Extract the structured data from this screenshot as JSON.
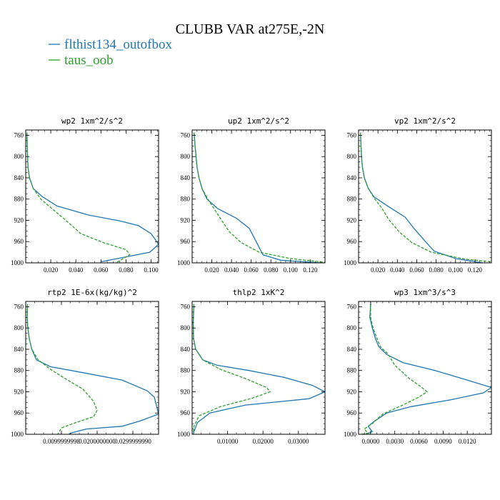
{
  "figure": {
    "title": "CLUBB VAR at275E,-2N",
    "legend": [
      {
        "label": "flthist134_outofbox",
        "color": "#1f77b4",
        "dash": "solid"
      },
      {
        "label": "taus_oob",
        "color": "#2ca02c",
        "dash": "dashed"
      }
    ]
  },
  "chart_data": [
    {
      "type": "line",
      "title": "wp2  1xm^2/s^2",
      "xlim": [
        0.0,
        0.106
      ],
      "ylim": [
        1000,
        750
      ],
      "yticks": [
        760,
        800,
        840,
        880,
        920,
        960,
        1000
      ],
      "xticks": [
        0.02,
        0.04,
        0.06,
        0.08,
        0.1
      ],
      "xtick_labels": [
        "0.020",
        "0.040",
        "0.060",
        "0.080",
        "0.100"
      ],
      "series": [
        {
          "name": "flthist134_outofbox",
          "color": "#1f77b4",
          "dash": "solid",
          "points": [
            [
              0.001,
              755
            ],
            [
              0.0012,
              780
            ],
            [
              0.0015,
              800
            ],
            [
              0.0018,
              820
            ],
            [
              0.003,
              840
            ],
            [
              0.006,
              860
            ],
            [
              0.013,
              875
            ],
            [
              0.025,
              893
            ],
            [
              0.05,
              910
            ],
            [
              0.075,
              921
            ],
            [
              0.09,
              930
            ],
            [
              0.1,
              945
            ],
            [
              0.106,
              965
            ],
            [
              0.099,
              980
            ],
            [
              0.06,
              998
            ]
          ]
        },
        {
          "name": "taus_oob",
          "color": "#2ca02c",
          "dash": "dashed",
          "points": [
            [
              0.001,
              755
            ],
            [
              0.0012,
              780
            ],
            [
              0.0015,
              800
            ],
            [
              0.0018,
              820
            ],
            [
              0.003,
              840
            ],
            [
              0.006,
              860
            ],
            [
              0.012,
              880
            ],
            [
              0.022,
              900
            ],
            [
              0.032,
              920
            ],
            [
              0.044,
              945
            ],
            [
              0.062,
              962
            ],
            [
              0.08,
              975
            ],
            [
              0.083,
              985
            ],
            [
              0.072,
              1000
            ]
          ]
        }
      ]
    },
    {
      "type": "line",
      "title": "up2  1xm^2/s^2",
      "xlim": [
        0.0,
        0.135
      ],
      "ylim": [
        1000,
        750
      ],
      "yticks": [
        760,
        800,
        840,
        880,
        920,
        960,
        1000
      ],
      "xticks": [
        0.02,
        0.04,
        0.06,
        0.08,
        0.1,
        0.12
      ],
      "xtick_labels": [
        "0.020",
        "0.040",
        "0.060",
        "0.080",
        "0.100",
        "0.120"
      ],
      "series": [
        {
          "name": "flthist134_outofbox",
          "color": "#1f77b4",
          "dash": "solid",
          "points": [
            [
              0.002,
              755
            ],
            [
              0.003,
              780
            ],
            [
              0.004,
              800
            ],
            [
              0.005,
              820
            ],
            [
              0.007,
              840
            ],
            [
              0.01,
              860
            ],
            [
              0.015,
              880
            ],
            [
              0.026,
              898
            ],
            [
              0.045,
              916
            ],
            [
              0.058,
              935
            ],
            [
              0.065,
              960
            ],
            [
              0.072,
              985
            ],
            [
              0.09,
              995
            ],
            [
              0.13,
              1000
            ]
          ]
        },
        {
          "name": "taus_oob",
          "color": "#2ca02c",
          "dash": "dashed",
          "points": [
            [
              0.002,
              755
            ],
            [
              0.003,
              780
            ],
            [
              0.004,
              800
            ],
            [
              0.005,
              820
            ],
            [
              0.007,
              840
            ],
            [
              0.01,
              860
            ],
            [
              0.016,
              880
            ],
            [
              0.023,
              900
            ],
            [
              0.03,
              920
            ],
            [
              0.038,
              942
            ],
            [
              0.05,
              962
            ],
            [
              0.068,
              980
            ],
            [
              0.1,
              992
            ],
            [
              0.135,
              999
            ]
          ]
        }
      ]
    },
    {
      "type": "line",
      "title": "vp2  1xm^2/s^2",
      "xlim": [
        0.0,
        0.137
      ],
      "ylim": [
        1000,
        750
      ],
      "yticks": [
        760,
        800,
        840,
        880,
        920,
        960,
        1000
      ],
      "xticks": [
        0.02,
        0.04,
        0.06,
        0.08,
        0.1,
        0.12
      ],
      "xtick_labels": [
        "0.020",
        "0.040",
        "0.060",
        "0.080",
        "0.100",
        "0.120"
      ],
      "series": [
        {
          "name": "flthist134_outofbox",
          "color": "#1f77b4",
          "dash": "solid",
          "points": [
            [
              0.002,
              755
            ],
            [
              0.0025,
              780
            ],
            [
              0.003,
              800
            ],
            [
              0.004,
              820
            ],
            [
              0.006,
              840
            ],
            [
              0.01,
              860
            ],
            [
              0.016,
              876
            ],
            [
              0.03,
              893
            ],
            [
              0.048,
              914
            ],
            [
              0.057,
              935
            ],
            [
              0.068,
              958
            ],
            [
              0.078,
              978
            ],
            [
              0.1,
              992
            ],
            [
              0.128,
              1000
            ]
          ]
        },
        {
          "name": "taus_oob",
          "color": "#2ca02c",
          "dash": "dashed",
          "points": [
            [
              0.002,
              755
            ],
            [
              0.0025,
              780
            ],
            [
              0.003,
              800
            ],
            [
              0.004,
              820
            ],
            [
              0.006,
              840
            ],
            [
              0.01,
              860
            ],
            [
              0.016,
              878
            ],
            [
              0.024,
              897
            ],
            [
              0.031,
              918
            ],
            [
              0.042,
              942
            ],
            [
              0.055,
              962
            ],
            [
              0.075,
              980
            ],
            [
              0.11,
              993
            ],
            [
              0.137,
              998
            ]
          ]
        }
      ]
    },
    {
      "type": "line",
      "title": "rtp2  1E-6x(kg/kg)^2",
      "xlim": [
        0.0,
        0.0372
      ],
      "ylim": [
        1000,
        750
      ],
      "yticks": [
        760,
        800,
        840,
        880,
        920,
        960,
        1000
      ],
      "xticks": [
        0.01,
        0.02,
        0.03
      ],
      "xtick_labels": [
        "0.0099999998",
        "0.0200000000",
        "0.0299999990"
      ],
      "series": [
        {
          "name": "flthist134_outofbox",
          "color": "#1f77b4",
          "dash": "solid",
          "points": [
            [
              0.0005,
              755
            ],
            [
              0.0004,
              780
            ],
            [
              0.0006,
              800
            ],
            [
              0.001,
              820
            ],
            [
              0.0017,
              840
            ],
            [
              0.003,
              860
            ],
            [
              0.007,
              873
            ],
            [
              0.016,
              884
            ],
            [
              0.027,
              898
            ],
            [
              0.034,
              918
            ],
            [
              0.036,
              930
            ],
            [
              0.0372,
              962
            ],
            [
              0.032,
              975
            ],
            [
              0.027,
              985
            ],
            [
              0.017,
              990
            ],
            [
              0.013,
              997
            ],
            [
              0.012,
              1000
            ]
          ]
        },
        {
          "name": "taus_oob",
          "color": "#2ca02c",
          "dash": "dashed",
          "points": [
            [
              0.0005,
              755
            ],
            [
              0.0004,
              780
            ],
            [
              0.0006,
              800
            ],
            [
              0.001,
              820
            ],
            [
              0.0017,
              840
            ],
            [
              0.0035,
              860
            ],
            [
              0.007,
              878
            ],
            [
              0.011,
              895
            ],
            [
              0.016,
              915
            ],
            [
              0.019,
              938
            ],
            [
              0.02,
              955
            ],
            [
              0.019,
              967
            ],
            [
              0.014,
              978
            ],
            [
              0.01,
              988
            ],
            [
              0.009,
              1000
            ]
          ]
        }
      ]
    },
    {
      "type": "line",
      "title": "thlp2  1xK^2",
      "xlim": [
        0.0,
        0.0375
      ],
      "ylim": [
        1000,
        750
      ],
      "yticks": [
        760,
        800,
        840,
        880,
        920,
        960,
        1000
      ],
      "xticks": [
        0.01,
        0.02,
        0.03
      ],
      "xtick_labels": [
        "0.01000",
        "0.02000",
        "0.03000"
      ],
      "series": [
        {
          "name": "flthist134_outofbox",
          "color": "#1f77b4",
          "dash": "solid",
          "points": [
            [
              0.0005,
              755
            ],
            [
              0.0003,
              790
            ],
            [
              0.0004,
              820
            ],
            [
              0.001,
              840
            ],
            [
              0.003,
              860
            ],
            [
              0.007,
              870
            ],
            [
              0.016,
              880
            ],
            [
              0.026,
              893
            ],
            [
              0.034,
              908
            ],
            [
              0.0375,
              920
            ],
            [
              0.033,
              933
            ],
            [
              0.015,
              945
            ],
            [
              0.005,
              960
            ],
            [
              0.0015,
              978
            ],
            [
              0.0005,
              995
            ],
            [
              0.0004,
              1000
            ]
          ]
        },
        {
          "name": "taus_oob",
          "color": "#2ca02c",
          "dash": "dashed",
          "points": [
            [
              0.0005,
              755
            ],
            [
              0.0003,
              790
            ],
            [
              0.0004,
              820
            ],
            [
              0.001,
              840
            ],
            [
              0.003,
              860
            ],
            [
              0.008,
              878
            ],
            [
              0.015,
              895
            ],
            [
              0.021,
              912
            ],
            [
              0.022,
              920
            ],
            [
              0.017,
              932
            ],
            [
              0.008,
              948
            ],
            [
              0.002,
              965
            ],
            [
              0.0005,
              985
            ],
            [
              0.0003,
              1000
            ]
          ]
        }
      ]
    },
    {
      "type": "line",
      "title": "wp3  1xm^3/s^3",
      "xlim": [
        -0.0015,
        0.015
      ],
      "ylim": [
        1000,
        750
      ],
      "yticks": [
        760,
        800,
        840,
        880,
        920,
        960,
        1000
      ],
      "xticks": [
        0.0,
        0.003,
        0.006,
        0.009,
        0.012
      ],
      "xtick_labels": [
        "0.0000",
        "0.0030",
        "0.0060",
        "0.0090",
        "0.0120"
      ],
      "series": [
        {
          "name": "flthist134_outofbox",
          "color": "#1f77b4",
          "dash": "solid",
          "points": [
            [
              0.0,
              755
            ],
            [
              -0.0001,
              780
            ],
            [
              0.0002,
              800
            ],
            [
              0.0006,
              820
            ],
            [
              0.001,
              835
            ],
            [
              0.002,
              850
            ],
            [
              0.004,
              865
            ],
            [
              0.008,
              880
            ],
            [
              0.012,
              898
            ],
            [
              0.015,
              912
            ],
            [
              0.014,
              922
            ],
            [
              0.01,
              935
            ],
            [
              0.005,
              948
            ],
            [
              0.002,
              960
            ],
            [
              0.0005,
              975
            ],
            [
              -0.0003,
              985
            ],
            [
              0.0002,
              995
            ],
            [
              -0.0006,
              1000
            ]
          ]
        },
        {
          "name": "taus_oob",
          "color": "#2ca02c",
          "dash": "dashed",
          "points": [
            [
              0.0,
              755
            ],
            [
              0.0,
              780
            ],
            [
              0.0003,
              800
            ],
            [
              0.0008,
              820
            ],
            [
              0.0012,
              835
            ],
            [
              0.0022,
              850
            ],
            [
              0.003,
              870
            ],
            [
              0.0048,
              895
            ],
            [
              0.0062,
              910
            ],
            [
              0.007,
              920
            ],
            [
              0.006,
              930
            ],
            [
              0.004,
              945
            ],
            [
              0.0015,
              962
            ],
            [
              0.0002,
              980
            ],
            [
              -0.0008,
              990
            ],
            [
              -0.0003,
              998
            ],
            [
              -0.0012,
              1000
            ]
          ]
        }
      ]
    }
  ]
}
